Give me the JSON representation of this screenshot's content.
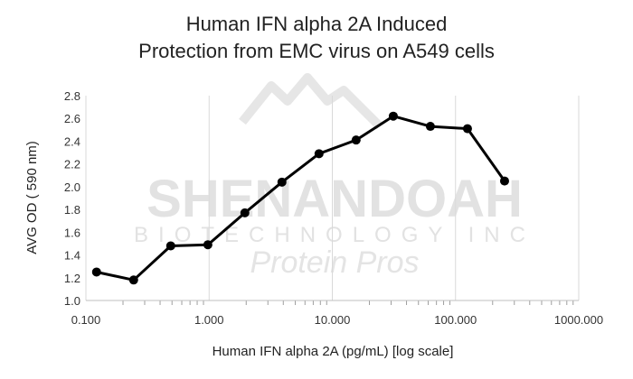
{
  "chart_data": {
    "type": "line",
    "title": "Human IFN alpha 2A Induced Protection from EMC virus on A549 cells",
    "title_lines": [
      "Human IFN alpha 2A Induced",
      "Protection from EMC virus on A549 cells"
    ],
    "xlabel": "Human IFN alpha 2A (pg/mL) [log scale]",
    "ylabel": "AVG OD ( 590 nm)",
    "x_scale": "log",
    "xlim": [
      0.1,
      1000
    ],
    "ylim": [
      1.0,
      2.8
    ],
    "x_ticks": [
      0.1,
      1,
      10,
      100,
      1000
    ],
    "x_tick_labels": [
      "0.100",
      "1.000",
      "10.000",
      "100.000",
      "1000.000"
    ],
    "y_ticks": [
      1.0,
      1.2,
      1.4,
      1.6,
      1.8,
      2.0,
      2.2,
      2.4,
      2.6,
      2.8
    ],
    "y_tick_labels": [
      "1.0",
      "1.2",
      "1.4",
      "1.6",
      "1.8",
      "2.0",
      "2.2",
      "2.4",
      "2.6",
      "2.8"
    ],
    "grid": "vertical-major",
    "series": [
      {
        "color": "#000000",
        "marker": "circle",
        "x": [
          0.122,
          0.244,
          0.488,
          0.977,
          1.95,
          3.9,
          7.8,
          15.6,
          31.25,
          62.5,
          125,
          250
        ],
        "y": [
          1.25,
          1.18,
          1.48,
          1.49,
          1.77,
          2.04,
          2.29,
          2.41,
          2.62,
          2.53,
          2.51,
          2.05
        ]
      }
    ]
  },
  "watermark": {
    "name": "SHENANDOAH",
    "line2": "BIOTECHNOLOGY INC",
    "line3": "Protein Pros",
    "color": "#e2e2e2"
  }
}
